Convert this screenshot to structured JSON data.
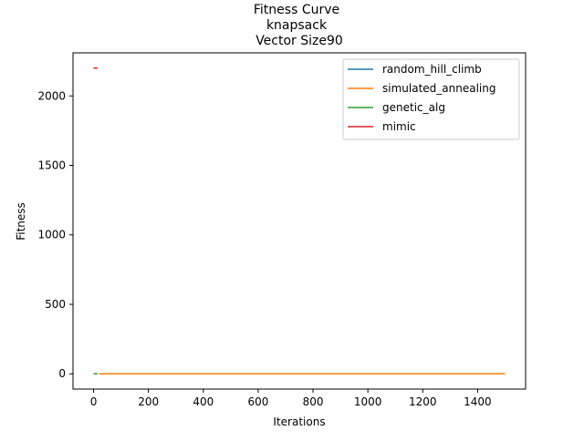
{
  "chart_data": {
    "type": "line",
    "title": [
      "Fitness Curve",
      "knapsack",
      "Vector Size90"
    ],
    "xlabel": "Iterations",
    "ylabel": "Fitness",
    "xlim": [
      -75,
      1575
    ],
    "ylim": [
      -110,
      2310
    ],
    "xticks": [
      0,
      200,
      400,
      600,
      800,
      1000,
      1200,
      1400
    ],
    "yticks": [
      0,
      500,
      1000,
      1500,
      2000
    ],
    "grid": false,
    "legend_position": "upper right",
    "series": [
      {
        "name": "random_hill_climb",
        "color": "#1f77b4",
        "x": [
          0,
          10
        ],
        "y": [
          0,
          0
        ]
      },
      {
        "name": "simulated_annealing",
        "color": "#ff7f0e",
        "x": [
          20,
          1500
        ],
        "y": [
          0,
          0
        ]
      },
      {
        "name": "genetic_alg",
        "color": "#2ca02c",
        "x": [
          0,
          15
        ],
        "y": [
          0,
          0
        ]
      },
      {
        "name": "mimic",
        "color": "#d62728",
        "x": [
          0,
          15
        ],
        "y": [
          2200,
          2200
        ]
      }
    ]
  }
}
